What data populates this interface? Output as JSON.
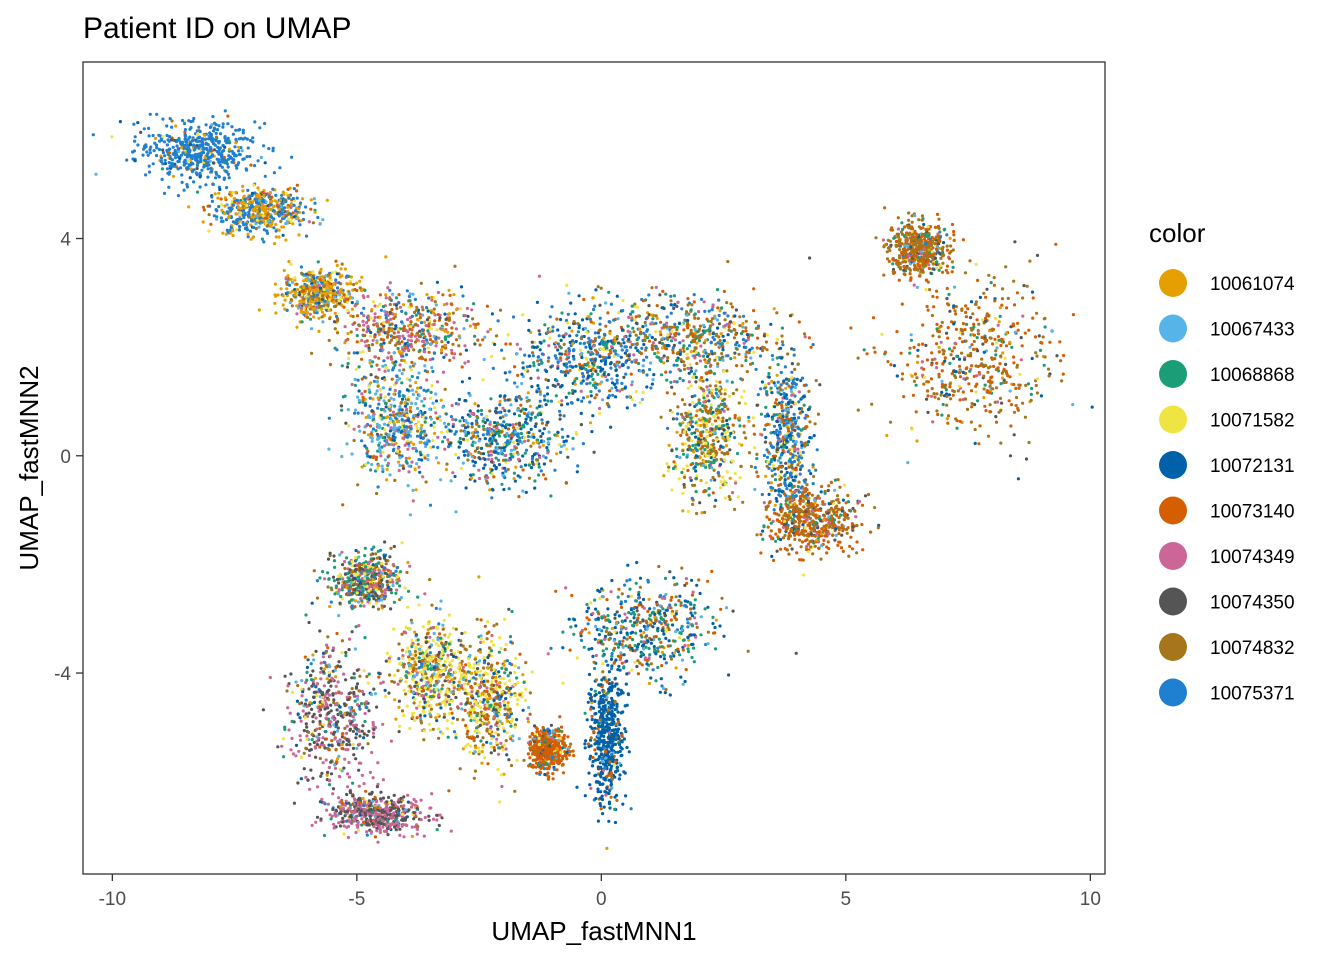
{
  "chart_data": {
    "type": "scatter",
    "title": "Patient ID on UMAP",
    "xlabel": "UMAP_fastMNN1",
    "ylabel": "UMAP_fastMNN2",
    "xlim": [
      -10.6,
      10.3
    ],
    "ylim": [
      -7.7,
      7.25
    ],
    "xticks": [
      -10,
      -5,
      0,
      5,
      10
    ],
    "xtick_labels": [
      "-10",
      "-5",
      "0",
      "5",
      "10"
    ],
    "yticks": [
      4,
      0,
      -4
    ],
    "ytick_labels": [
      "4",
      "0",
      "-4"
    ],
    "grid": false,
    "legend": {
      "title": "color",
      "position": "right"
    },
    "series": [
      {
        "name": "10061074",
        "color": "#E69F00"
      },
      {
        "name": "10067433",
        "color": "#56B4E9"
      },
      {
        "name": "10068868",
        "color": "#1B9E77"
      },
      {
        "name": "10071582",
        "color": "#F0E442"
      },
      {
        "name": "10072131",
        "color": "#0060A8"
      },
      {
        "name": "10073140",
        "color": "#D55E00"
      },
      {
        "name": "10074349",
        "color": "#CC6699"
      },
      {
        "name": "10074350",
        "color": "#555555"
      },
      {
        "name": "10074832",
        "color": "#A6761D"
      },
      {
        "name": "10075371",
        "color": "#1F7FD0"
      }
    ],
    "clusters": [
      {
        "center": [
          -8.3,
          5.6
        ],
        "spread": [
          1.0,
          0.45
        ],
        "weights": [
          0.05,
          0.02,
          0.01,
          0.01,
          0.03,
          0.02,
          0.01,
          0.01,
          0.02,
          0.82
        ]
      },
      {
        "center": [
          -7.0,
          4.5
        ],
        "spread": [
          0.8,
          0.35
        ],
        "weights": [
          0.35,
          0.05,
          0.02,
          0.05,
          0.02,
          0.05,
          0.03,
          0.02,
          0.06,
          0.35
        ]
      },
      {
        "center": [
          -5.8,
          3.0
        ],
        "spread": [
          0.6,
          0.35
        ],
        "weights": [
          0.45,
          0.08,
          0.05,
          0.08,
          0.03,
          0.05,
          0.05,
          0.02,
          0.09,
          0.1
        ]
      },
      {
        "center": [
          -4.0,
          2.3
        ],
        "spread": [
          1.2,
          0.6
        ],
        "weights": [
          0.08,
          0.06,
          0.08,
          0.06,
          0.04,
          0.15,
          0.25,
          0.03,
          0.17,
          0.08
        ]
      },
      {
        "center": [
          -4.2,
          0.6
        ],
        "spread": [
          0.8,
          0.9
        ],
        "weights": [
          0.06,
          0.25,
          0.07,
          0.1,
          0.05,
          0.06,
          0.12,
          0.03,
          0.08,
          0.18
        ]
      },
      {
        "center": [
          -2.0,
          0.3
        ],
        "spread": [
          1.1,
          0.7
        ],
        "weights": [
          0.04,
          0.1,
          0.12,
          0.05,
          0.22,
          0.06,
          0.07,
          0.06,
          0.08,
          0.2
        ]
      },
      {
        "center": [
          -0.3,
          1.8
        ],
        "spread": [
          1.2,
          0.8
        ],
        "weights": [
          0.04,
          0.06,
          0.1,
          0.06,
          0.25,
          0.06,
          0.06,
          0.04,
          0.08,
          0.25
        ]
      },
      {
        "center": [
          1.8,
          2.2
        ],
        "spread": [
          1.5,
          0.6
        ],
        "weights": [
          0.05,
          0.06,
          0.12,
          0.05,
          0.1,
          0.15,
          0.08,
          0.05,
          0.2,
          0.14
        ]
      },
      {
        "center": [
          2.2,
          0.4
        ],
        "spread": [
          0.6,
          1.0
        ],
        "weights": [
          0.06,
          0.03,
          0.15,
          0.22,
          0.05,
          0.08,
          0.03,
          0.05,
          0.28,
          0.05
        ]
      },
      {
        "center": [
          3.8,
          0.3
        ],
        "spread": [
          0.4,
          1.3
        ],
        "weights": [
          0.04,
          0.05,
          0.1,
          0.04,
          0.18,
          0.08,
          0.05,
          0.06,
          0.1,
          0.3
        ]
      },
      {
        "center": [
          4.3,
          -1.2
        ],
        "spread": [
          0.8,
          0.5
        ],
        "weights": [
          0.03,
          0.03,
          0.06,
          0.03,
          0.05,
          0.4,
          0.06,
          0.06,
          0.28,
          0.1
        ]
      },
      {
        "center": [
          7.6,
          1.8
        ],
        "spread": [
          1.4,
          1.2
        ],
        "weights": [
          0.04,
          0.03,
          0.08,
          0.03,
          0.05,
          0.4,
          0.04,
          0.05,
          0.28,
          0.1
        ]
      },
      {
        "center": [
          6.5,
          3.8
        ],
        "spread": [
          0.5,
          0.4
        ],
        "weights": [
          0.04,
          0.02,
          0.06,
          0.03,
          0.04,
          0.3,
          0.04,
          0.04,
          0.4,
          0.03
        ]
      },
      {
        "center": [
          0.9,
          -3.2
        ],
        "spread": [
          1.2,
          0.8
        ],
        "weights": [
          0.03,
          0.05,
          0.18,
          0.04,
          0.25,
          0.15,
          0.05,
          0.05,
          0.1,
          0.1
        ]
      },
      {
        "center": [
          0.1,
          -5.2
        ],
        "spread": [
          0.3,
          1.0
        ],
        "weights": [
          0.01,
          0.02,
          0.02,
          0.01,
          0.8,
          0.05,
          0.01,
          0.02,
          0.03,
          0.03
        ]
      },
      {
        "center": [
          -1.1,
          -5.4
        ],
        "spread": [
          0.3,
          0.3
        ],
        "weights": [
          0.02,
          0.02,
          0.02,
          0.04,
          0.04,
          0.7,
          0.02,
          0.02,
          0.08,
          0.04
        ]
      },
      {
        "center": [
          -2.3,
          -4.5
        ],
        "spread": [
          0.6,
          1.0
        ],
        "weights": [
          0.05,
          0.04,
          0.06,
          0.3,
          0.05,
          0.1,
          0.08,
          0.04,
          0.25,
          0.03
        ]
      },
      {
        "center": [
          -3.5,
          -4.0
        ],
        "spread": [
          0.6,
          0.8
        ],
        "weights": [
          0.05,
          0.08,
          0.06,
          0.32,
          0.04,
          0.06,
          0.08,
          0.08,
          0.2,
          0.03
        ]
      },
      {
        "center": [
          -5.5,
          -4.8
        ],
        "spread": [
          0.8,
          1.1
        ],
        "weights": [
          0.02,
          0.07,
          0.05,
          0.05,
          0.03,
          0.04,
          0.28,
          0.38,
          0.05,
          0.03
        ]
      },
      {
        "center": [
          -4.8,
          -2.3
        ],
        "spread": [
          0.6,
          0.4
        ],
        "weights": [
          0.04,
          0.05,
          0.18,
          0.1,
          0.03,
          0.06,
          0.14,
          0.2,
          0.15,
          0.05
        ]
      },
      {
        "center": [
          -4.6,
          -6.6
        ],
        "spread": [
          0.8,
          0.3
        ],
        "weights": [
          0.02,
          0.03,
          0.03,
          0.03,
          0.02,
          0.03,
          0.45,
          0.35,
          0.02,
          0.02
        ]
      }
    ]
  }
}
